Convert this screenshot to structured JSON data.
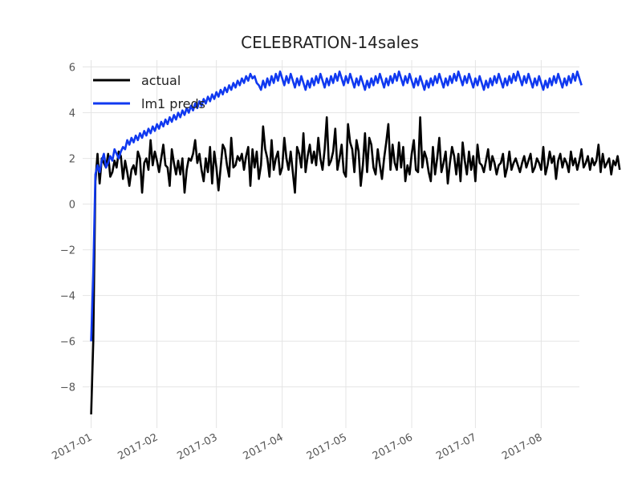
{
  "chart_data": {
    "type": "line",
    "title": "CELEBRATION-14sales",
    "xlabel": "",
    "ylabel": "",
    "x_start": "2017-01-01",
    "x_end": "2017-08-15",
    "xlim": [
      "2016-12-28",
      "2017-08-19"
    ],
    "ylim": [
      -9.8,
      6.3
    ],
    "grid": true,
    "legend_position": "top-left",
    "x_ticks": [
      {
        "date": "2017-01-01",
        "label": "2017-01"
      },
      {
        "date": "2017-02-01",
        "label": "2017-02"
      },
      {
        "date": "2017-03-01",
        "label": "2017-03"
      },
      {
        "date": "2017-04-01",
        "label": "2017-04"
      },
      {
        "date": "2017-05-01",
        "label": "2017-05"
      },
      {
        "date": "2017-06-01",
        "label": "2017-06"
      },
      {
        "date": "2017-07-01",
        "label": "2017-07"
      },
      {
        "date": "2017-08-01",
        "label": "2017-08"
      }
    ],
    "y_ticks": [
      {
        "value": 6,
        "label": "6"
      },
      {
        "value": 4,
        "label": "4"
      },
      {
        "value": 2,
        "label": "2"
      },
      {
        "value": 0,
        "label": "0"
      },
      {
        "value": -2,
        "label": "−2"
      },
      {
        "value": -4,
        "label": "−4"
      },
      {
        "value": -6,
        "label": "−6"
      },
      {
        "value": -8,
        "label": "−8"
      }
    ],
    "series": [
      {
        "name": "actual",
        "color": "#000000",
        "values": [
          -9.2,
          -6.0,
          1.0,
          2.2,
          0.9,
          2.0,
          1.8,
          1.6,
          2.2,
          1.2,
          1.4,
          1.9,
          1.6,
          2.3,
          2.1,
          1.1,
          1.9,
          1.4,
          0.8,
          1.5,
          1.7,
          1.3,
          2.3,
          2.0,
          0.5,
          1.8,
          2.0,
          1.5,
          2.8,
          1.7,
          2.3,
          1.9,
          1.4,
          2.0,
          2.6,
          1.7,
          1.6,
          0.8,
          2.4,
          1.8,
          1.3,
          1.9,
          1.3,
          2.0,
          0.5,
          1.5,
          2.0,
          1.9,
          2.2,
          2.8,
          1.8,
          2.2,
          1.5,
          1.0,
          2.0,
          1.4,
          2.5,
          0.9,
          2.3,
          1.6,
          0.6,
          1.6,
          2.6,
          2.4,
          1.7,
          1.2,
          2.9,
          1.6,
          1.7,
          2.1,
          1.9,
          2.2,
          1.5,
          2.1,
          2.5,
          0.8,
          2.4,
          1.6,
          2.3,
          1.1,
          1.7,
          3.4,
          2.4,
          2.0,
          1.2,
          2.8,
          1.5,
          2.0,
          2.3,
          1.3,
          1.6,
          2.9,
          2.0,
          1.5,
          2.3,
          1.4,
          0.5,
          2.5,
          2.2,
          1.6,
          3.1,
          1.4,
          2.1,
          2.6,
          1.8,
          2.3,
          1.7,
          2.9,
          2.0,
          1.5,
          2.4,
          3.8,
          1.7,
          1.9,
          2.3,
          3.3,
          1.5,
          2.0,
          2.6,
          1.4,
          1.2,
          3.5,
          2.7,
          2.4,
          1.4,
          2.8,
          2.3,
          0.8,
          1.7,
          3.1,
          1.4,
          2.9,
          2.6,
          1.6,
          1.3,
          2.4,
          1.7,
          1.1,
          2.0,
          2.7,
          3.5,
          1.5,
          2.6,
          1.8,
          1.5,
          2.7,
          1.6,
          2.5,
          1.0,
          1.7,
          1.3,
          2.2,
          2.8,
          1.5,
          1.4,
          3.8,
          1.6,
          2.3,
          2.0,
          1.4,
          1.0,
          2.5,
          1.3,
          2.0,
          2.9,
          1.4,
          1.8,
          2.3,
          0.9,
          1.8,
          2.5,
          2.1,
          1.3,
          2.2,
          1.0,
          2.7,
          1.9,
          1.3,
          2.3,
          1.5,
          2.1,
          1.0,
          2.6,
          1.8,
          1.7,
          1.4,
          1.9,
          2.4,
          1.5,
          2.1,
          1.8,
          1.3,
          1.7,
          1.8,
          2.2,
          1.2,
          1.6,
          2.3,
          1.5,
          1.8,
          2.0,
          1.7,
          1.4,
          1.8,
          2.1,
          1.6,
          1.9,
          2.2,
          1.4,
          1.6,
          2.0,
          1.8,
          1.5,
          2.5,
          1.3,
          1.7,
          2.3,
          1.8,
          2.1,
          1.1,
          1.9,
          2.2,
          1.6,
          2.0,
          1.8,
          1.4,
          2.3,
          1.7,
          2.0,
          1.5,
          1.9,
          2.4,
          1.6,
          1.8,
          2.1,
          1.5,
          2.0,
          1.7,
          1.9,
          2.6,
          1.4,
          2.2,
          1.6,
          1.8,
          2.0,
          1.3,
          1.9,
          1.7,
          2.1,
          1.5
        ]
      },
      {
        "name": "lm1 preds",
        "color": "#1039f0",
        "values": [
          -6.0,
          -3.0,
          1.3,
          1.7,
          1.4,
          1.9,
          2.2,
          1.6,
          1.8,
          2.1,
          1.9,
          2.4,
          2.2,
          2.0,
          2.3,
          2.5,
          2.4,
          2.8,
          2.6,
          2.9,
          2.7,
          3.0,
          2.8,
          3.1,
          2.9,
          3.2,
          3.0,
          3.3,
          3.1,
          3.4,
          3.2,
          3.5,
          3.3,
          3.6,
          3.4,
          3.7,
          3.5,
          3.8,
          3.6,
          3.9,
          3.7,
          4.0,
          3.8,
          4.1,
          3.9,
          4.2,
          4.0,
          4.3,
          4.1,
          4.4,
          4.2,
          4.5,
          4.3,
          4.6,
          4.4,
          4.7,
          4.5,
          4.8,
          4.6,
          4.9,
          4.7,
          5.0,
          4.8,
          5.1,
          4.9,
          5.2,
          5.0,
          5.3,
          5.1,
          5.4,
          5.2,
          5.5,
          5.3,
          5.6,
          5.4,
          5.7,
          5.5,
          5.6,
          5.3,
          5.2,
          5.0,
          5.4,
          5.1,
          5.5,
          5.2,
          5.6,
          5.3,
          5.7,
          5.4,
          5.8,
          5.5,
          5.2,
          5.6,
          5.3,
          5.7,
          5.4,
          5.1,
          5.5,
          5.2,
          5.6,
          5.3,
          5.0,
          5.4,
          5.1,
          5.5,
          5.2,
          5.6,
          5.3,
          5.7,
          5.4,
          5.1,
          5.5,
          5.2,
          5.6,
          5.3,
          5.7,
          5.4,
          5.8,
          5.5,
          5.2,
          5.6,
          5.3,
          5.7,
          5.4,
          5.1,
          5.5,
          5.2,
          5.6,
          5.3,
          5.0,
          5.4,
          5.1,
          5.5,
          5.2,
          5.6,
          5.3,
          5.7,
          5.4,
          5.1,
          5.5,
          5.2,
          5.6,
          5.3,
          5.7,
          5.4,
          5.8,
          5.5,
          5.2,
          5.6,
          5.3,
          5.7,
          5.4,
          5.1,
          5.5,
          5.2,
          5.6,
          5.3,
          5.0,
          5.4,
          5.1,
          5.5,
          5.2,
          5.6,
          5.3,
          5.7,
          5.4,
          5.1,
          5.5,
          5.2,
          5.6,
          5.3,
          5.7,
          5.4,
          5.8,
          5.5,
          5.2,
          5.6,
          5.3,
          5.7,
          5.4,
          5.1,
          5.5,
          5.2,
          5.6,
          5.3,
          5.0,
          5.4,
          5.1,
          5.5,
          5.2,
          5.6,
          5.3,
          5.7,
          5.4,
          5.1,
          5.5,
          5.2,
          5.6,
          5.3,
          5.7,
          5.4,
          5.8,
          5.5,
          5.2,
          5.6,
          5.3,
          5.7,
          5.4,
          5.1,
          5.5,
          5.2,
          5.6,
          5.3,
          5.0,
          5.4,
          5.1,
          5.5,
          5.2,
          5.6,
          5.3,
          5.7,
          5.4,
          5.1,
          5.5,
          5.2,
          5.6,
          5.3,
          5.7,
          5.4,
          5.8,
          5.5,
          5.2
        ]
      }
    ]
  }
}
